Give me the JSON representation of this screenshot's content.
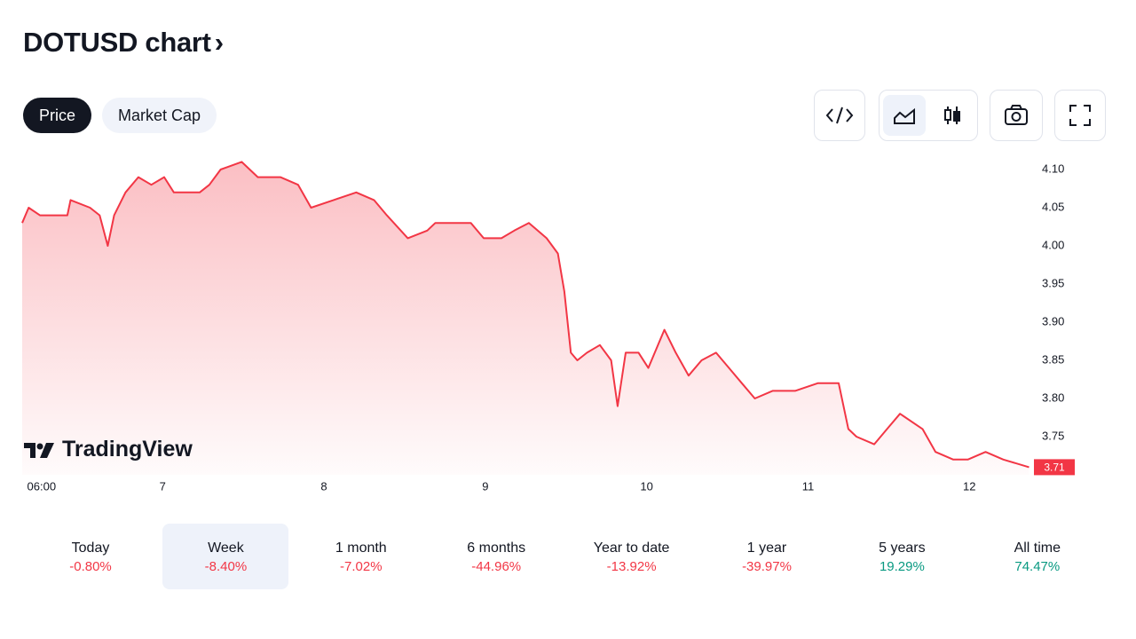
{
  "header": {
    "title": "DOTUSD chart"
  },
  "tabs": [
    "Price",
    "Market Cap"
  ],
  "active_tab": 0,
  "watermark": "TradingView",
  "chart_data": {
    "type": "line",
    "color": "#f23645",
    "x": [
      6.13,
      6.17,
      6.24,
      6.41,
      6.43,
      6.55,
      6.61,
      6.66,
      6.7,
      6.77,
      6.85,
      6.93,
      7.01,
      7.07,
      7.23,
      7.29,
      7.36,
      7.49,
      7.59,
      7.73,
      7.84,
      7.92,
      8.06,
      8.2,
      8.31,
      8.39,
      8.52,
      8.64,
      8.69,
      8.91,
      8.99,
      9.1,
      9.18,
      9.27,
      9.38,
      9.45,
      9.49,
      9.53,
      9.57,
      9.63,
      9.71,
      9.78,
      9.82,
      9.87,
      9.95,
      10.01,
      10.11,
      10.18,
      10.26,
      10.34,
      10.43,
      10.51,
      10.59,
      10.67,
      10.78,
      10.92,
      11.06,
      11.19,
      11.25,
      11.3,
      11.41,
      11.49,
      11.57,
      11.71,
      11.79,
      11.9,
      11.99,
      12.1,
      12.21,
      12.37
    ],
    "values": [
      4.03,
      4.05,
      4.04,
      4.04,
      4.06,
      4.05,
      4.04,
      4.0,
      4.04,
      4.07,
      4.09,
      4.08,
      4.09,
      4.07,
      4.07,
      4.08,
      4.1,
      4.11,
      4.09,
      4.09,
      4.08,
      4.05,
      4.06,
      4.07,
      4.06,
      4.04,
      4.01,
      4.02,
      4.03,
      4.03,
      4.01,
      4.01,
      4.02,
      4.03,
      4.01,
      3.99,
      3.94,
      3.86,
      3.85,
      3.86,
      3.87,
      3.85,
      3.79,
      3.86,
      3.86,
      3.84,
      3.89,
      3.86,
      3.83,
      3.85,
      3.86,
      3.84,
      3.82,
      3.8,
      3.81,
      3.81,
      3.82,
      3.82,
      3.76,
      3.75,
      3.74,
      3.76,
      3.78,
      3.76,
      3.73,
      3.72,
      3.72,
      3.73,
      3.72,
      3.71
    ],
    "xlim": [
      6.13,
      12.4
    ],
    "xticks": [
      {
        "value": 6.25,
        "label": "06:00"
      },
      7,
      8,
      9,
      10,
      11,
      12
    ],
    "ylim": [
      3.7,
      4.12
    ],
    "yticks": [
      3.75,
      {
        "value": 3.8,
        "label": "3.80"
      },
      3.85,
      {
        "value": 3.9,
        "label": "3.90"
      },
      3.95,
      {
        "value": 4.0,
        "label": "4.00"
      },
      4.05,
      {
        "value": 4.1,
        "label": "4.10"
      }
    ],
    "last_value": 3.71
  },
  "periods": [
    {
      "label": "Today",
      "change": "-0.80%"
    },
    {
      "label": "Week",
      "change": "-8.40%"
    },
    {
      "label": "1 month",
      "change": "-7.02%"
    },
    {
      "label": "6 months",
      "change": "-44.96%"
    },
    {
      "label": "Year to date",
      "change": "-13.92%"
    },
    {
      "label": "1 year",
      "change": "-39.97%"
    },
    {
      "label": "5 years",
      "change": "19.29%"
    },
    {
      "label": "All time",
      "change": "74.47%"
    }
  ],
  "selected_period": 1
}
